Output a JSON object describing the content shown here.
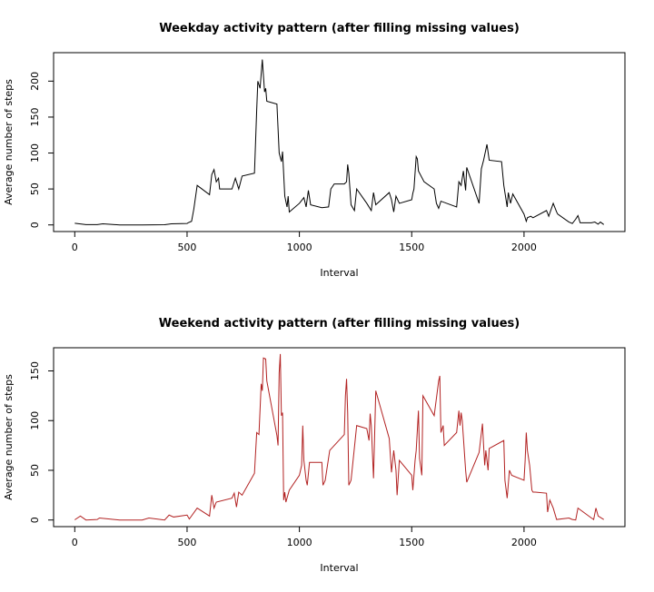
{
  "chart_data": [
    {
      "type": "line",
      "title": "Weekday activity pattern (after filling missing values)",
      "xlabel": "Interval",
      "ylabel": "Average number of steps",
      "color": "#000000",
      "x": [
        0,
        50,
        100,
        125,
        200,
        300,
        400,
        430,
        500,
        505,
        520,
        530,
        545,
        600,
        610,
        620,
        630,
        640,
        645,
        700,
        715,
        720,
        730,
        745,
        800,
        810,
        815,
        825,
        835,
        845,
        850,
        855,
        900,
        910,
        920,
        925,
        935,
        945,
        950,
        955,
        1000,
        1020,
        1030,
        1040,
        1050,
        1100,
        1130,
        1140,
        1155,
        1200,
        1210,
        1215,
        1220,
        1230,
        1245,
        1255,
        1300,
        1320,
        1330,
        1340,
        1400,
        1410,
        1420,
        1430,
        1445,
        1500,
        1505,
        1510,
        1520,
        1525,
        1530,
        1555,
        1600,
        1610,
        1620,
        1630,
        1700,
        1710,
        1720,
        1730,
        1740,
        1745,
        1800,
        1810,
        1820,
        1835,
        1845,
        1900,
        1910,
        1925,
        1930,
        1940,
        1950,
        2000,
        2010,
        2015,
        2030,
        2040,
        2100,
        2110,
        2130,
        2145,
        2150,
        2200,
        2215,
        2230,
        2240,
        2250,
        2300,
        2315,
        2330,
        2340,
        2355
      ],
      "values": [
        2.3,
        0.5,
        0.4,
        1.5,
        0,
        0,
        0.3,
        1.5,
        2,
        3,
        5,
        22,
        55,
        42,
        70,
        77,
        60,
        65,
        50,
        50,
        65,
        60,
        50,
        68,
        72,
        160,
        200,
        190,
        230,
        185,
        190,
        172,
        168,
        100,
        88,
        102,
        40,
        25,
        40,
        18,
        30,
        38,
        25,
        48,
        28,
        24,
        25,
        50,
        57,
        57,
        60,
        84,
        72,
        28,
        20,
        50,
        30,
        20,
        45,
        28,
        45,
        35,
        18,
        40,
        30,
        35,
        44,
        50,
        95,
        92,
        75,
        60,
        50,
        30,
        23,
        33,
        25,
        60,
        55,
        75,
        48,
        80,
        30,
        78,
        90,
        112,
        90,
        88,
        55,
        25,
        45,
        30,
        43,
        15,
        5,
        10,
        12,
        10,
        20,
        12,
        30,
        18,
        15,
        4,
        2,
        8,
        13,
        3,
        3,
        4,
        1,
        4,
        0.5
      ],
      "xlim": [
        -94.2,
        2449.2
      ],
      "ylim": [
        -9.2,
        239.6
      ],
      "xticks": [
        0,
        500,
        1000,
        1500,
        2000
      ],
      "yticks": [
        0,
        50,
        100,
        150,
        200
      ]
    },
    {
      "type": "line",
      "title": "Weekend activity pattern (after filling missing values)",
      "xlabel": "Interval",
      "ylabel": "Average number of steps",
      "color": "#b22222",
      "x": [
        0,
        25,
        50,
        100,
        110,
        200,
        300,
        330,
        400,
        420,
        440,
        500,
        510,
        545,
        600,
        610,
        620,
        630,
        700,
        710,
        720,
        730,
        745,
        800,
        810,
        820,
        830,
        835,
        840,
        850,
        855,
        900,
        905,
        910,
        915,
        920,
        925,
        930,
        935,
        940,
        955,
        1000,
        1010,
        1015,
        1020,
        1030,
        1035,
        1045,
        1100,
        1105,
        1115,
        1135,
        1200,
        1205,
        1210,
        1215,
        1220,
        1230,
        1255,
        1300,
        1310,
        1315,
        1320,
        1330,
        1340,
        1400,
        1410,
        1420,
        1430,
        1435,
        1445,
        1500,
        1505,
        1515,
        1520,
        1530,
        1535,
        1545,
        1550,
        1600,
        1620,
        1625,
        1630,
        1640,
        1645,
        1700,
        1710,
        1715,
        1720,
        1725,
        1740,
        1745,
        1800,
        1815,
        1820,
        1825,
        1830,
        1840,
        1845,
        1910,
        1915,
        1925,
        1935,
        1945,
        2000,
        2005,
        2010,
        2015,
        2025,
        2035,
        2040,
        2050,
        2100,
        2105,
        2115,
        2130,
        2145,
        2200,
        2210,
        2215,
        2230,
        2240,
        2300,
        2310,
        2320,
        2330,
        2355
      ],
      "values": [
        0.2,
        4,
        0,
        0.5,
        2,
        0,
        0,
        2,
        0,
        5,
        3,
        5,
        1,
        12,
        4,
        25,
        12,
        18,
        22,
        27,
        13,
        28,
        25,
        47,
        88,
        86,
        137,
        130,
        163,
        162,
        140,
        85,
        75,
        148,
        167,
        105,
        108,
        20,
        28,
        18,
        30,
        45,
        55,
        95,
        60,
        40,
        35,
        58,
        58,
        35,
        40,
        70,
        86,
        125,
        142,
        108,
        35,
        40,
        95,
        92,
        80,
        107,
        95,
        42,
        130,
        82,
        48,
        70,
        50,
        25,
        60,
        45,
        30,
        60,
        70,
        110,
        62,
        45,
        125,
        105,
        140,
        145,
        88,
        95,
        75,
        88,
        110,
        95,
        108,
        100,
        50,
        38,
        68,
        97,
        75,
        55,
        70,
        50,
        72,
        80,
        40,
        22,
        50,
        45,
        40,
        60,
        88,
        70,
        55,
        30,
        28,
        28,
        27,
        8,
        20,
        12,
        0.5,
        2,
        1,
        0.5,
        0,
        12,
        2,
        0.5,
        12,
        4,
        0.5
      ],
      "xlim": [
        -94.2,
        2449.2
      ],
      "ylim": [
        -6.66,
        173.3
      ],
      "xticks": [
        0,
        500,
        1000,
        1500,
        2000
      ],
      "yticks": [
        0,
        50,
        100,
        150
      ]
    }
  ]
}
